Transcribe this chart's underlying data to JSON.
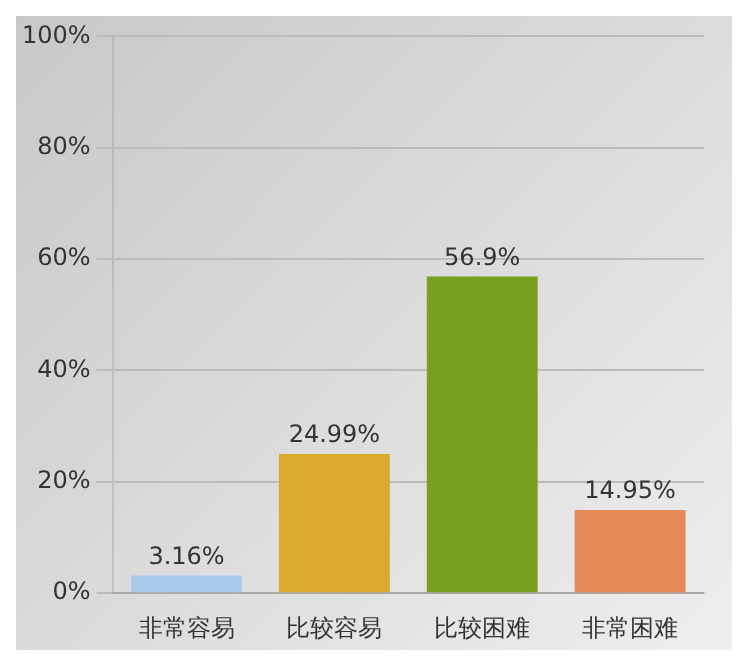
{
  "chart_data": {
    "type": "bar",
    "categories": [
      "非常容易",
      "比较容易",
      "比较困难",
      "非常困难"
    ],
    "values": [
      3.16,
      24.99,
      56.9,
      14.95
    ],
    "colors": [
      "#a9c9ea",
      "#d9aa2c",
      "#76a01e",
      "#e58a57"
    ],
    "value_labels": [
      "3.16%",
      "24.99%",
      "56.9%",
      "14.95%"
    ],
    "ylim": [
      0,
      100
    ],
    "yticks": [
      {
        "value": 0,
        "label": "0%"
      },
      {
        "value": 20,
        "label": "20%"
      },
      {
        "value": 40,
        "label": "40%"
      },
      {
        "value": 60,
        "label": "60%"
      },
      {
        "value": 80,
        "label": "80%"
      },
      {
        "value": 100,
        "label": "100%"
      }
    ],
    "grid": "y"
  }
}
